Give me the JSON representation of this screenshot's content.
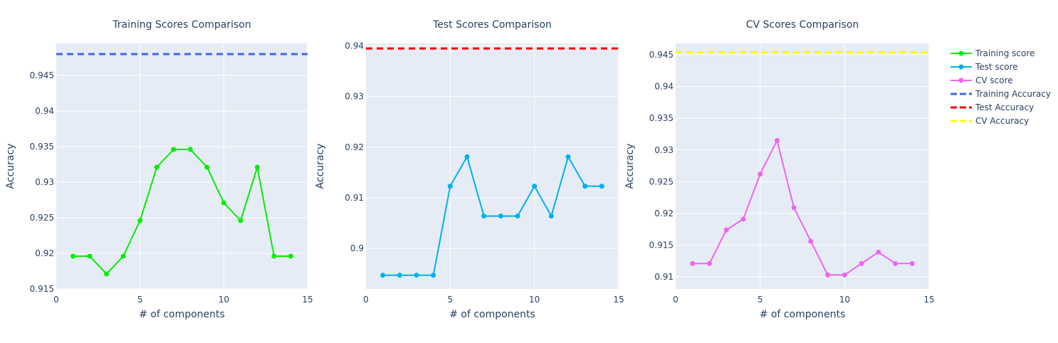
{
  "chart_data": [
    {
      "type": "line",
      "title": "Training Scores Comparison",
      "xlabel": "# of components",
      "ylabel": "Accuracy",
      "xlim": [
        0,
        15
      ],
      "ylim": [
        0.915,
        0.9495
      ],
      "xticks": [
        0,
        5,
        10,
        15
      ],
      "yticks": [
        0.915,
        0.92,
        0.925,
        0.93,
        0.935,
        0.94,
        0.945
      ],
      "ytick_labels": [
        "0.915",
        "0.92",
        "0.925",
        "0.93",
        "0.935",
        "0.94",
        "0.945"
      ],
      "grid": true,
      "series": [
        {
          "name": "Training score",
          "color": "#00ee00",
          "x": [
            1,
            2,
            3,
            4,
            5,
            6,
            7,
            8,
            9,
            10,
            11,
            12,
            13,
            14
          ],
          "values": [
            0.9196,
            0.9196,
            0.9171,
            0.9196,
            0.9246,
            0.9321,
            0.9346,
            0.9346,
            0.9321,
            0.9271,
            0.9246,
            0.9321,
            0.9196,
            0.9196
          ]
        }
      ],
      "hline": {
        "name": "Training Accuracy",
        "value": 0.948,
        "color": "#4169e1",
        "style": "dashed"
      }
    },
    {
      "type": "line",
      "title": "Test Scores Comparison",
      "xlabel": "# of components",
      "ylabel": "Accuracy",
      "xlim": [
        0,
        15
      ],
      "ylim": [
        0.892,
        0.9405
      ],
      "xticks": [
        0,
        5,
        10,
        15
      ],
      "yticks": [
        0.9,
        0.91,
        0.92,
        0.93,
        0.94
      ],
      "ytick_labels": [
        "0.9",
        "0.91",
        "0.92",
        "0.93",
        "0.94"
      ],
      "grid": true,
      "series": [
        {
          "name": "Test score",
          "color": "#00b0f0",
          "x": [
            1,
            2,
            3,
            4,
            5,
            6,
            7,
            8,
            9,
            10,
            11,
            12,
            13,
            14
          ],
          "values": [
            0.8947,
            0.8947,
            0.8947,
            0.8947,
            0.9123,
            0.9181,
            0.9064,
            0.9064,
            0.9064,
            0.9123,
            0.9064,
            0.9181,
            0.9123,
            0.9123
          ]
        }
      ],
      "hline": {
        "name": "Test Accuracy",
        "value": 0.9395,
        "color": "#ff0000",
        "style": "dashed"
      }
    },
    {
      "type": "line",
      "title": "CV Scores Comparison",
      "xlabel": "# of components",
      "ylabel": "Accuracy",
      "xlim": [
        0,
        15
      ],
      "ylim": [
        0.9081,
        0.9468
      ],
      "xticks": [
        0,
        5,
        10,
        15
      ],
      "yticks": [
        0.91,
        0.915,
        0.92,
        0.925,
        0.93,
        0.935,
        0.94,
        0.945
      ],
      "ytick_labels": [
        "0.91",
        "0.915",
        "0.92",
        "0.925",
        "0.93",
        "0.935",
        "0.94",
        "0.945"
      ],
      "grid": true,
      "series": [
        {
          "name": "CV score",
          "color": "#ee66ee",
          "x": [
            1,
            2,
            3,
            4,
            5,
            6,
            7,
            8,
            9,
            10,
            11,
            12,
            13,
            14
          ],
          "values": [
            0.9121,
            0.9121,
            0.9174,
            0.9191,
            0.9262,
            0.9315,
            0.9209,
            0.9156,
            0.9103,
            0.9103,
            0.9121,
            0.9139,
            0.9121,
            0.9121
          ]
        }
      ],
      "hline": {
        "name": "CV Accuracy",
        "value": 0.9454,
        "color": "#ffff00",
        "style": "dashed"
      }
    }
  ],
  "legend": {
    "position": "top-right",
    "items": [
      {
        "label": "Training score",
        "color": "#00ee00",
        "kind": "line-marker"
      },
      {
        "label": "Test score",
        "color": "#00b0f0",
        "kind": "line-marker"
      },
      {
        "label": "CV score",
        "color": "#ee66ee",
        "kind": "line-marker"
      },
      {
        "label": "Training Accuracy",
        "color": "#4169e1",
        "kind": "dashed"
      },
      {
        "label": "Test Accuracy",
        "color": "#ff0000",
        "kind": "dashed"
      },
      {
        "label": "CV Accuracy",
        "color": "#ffff00",
        "kind": "dashed"
      }
    ]
  }
}
